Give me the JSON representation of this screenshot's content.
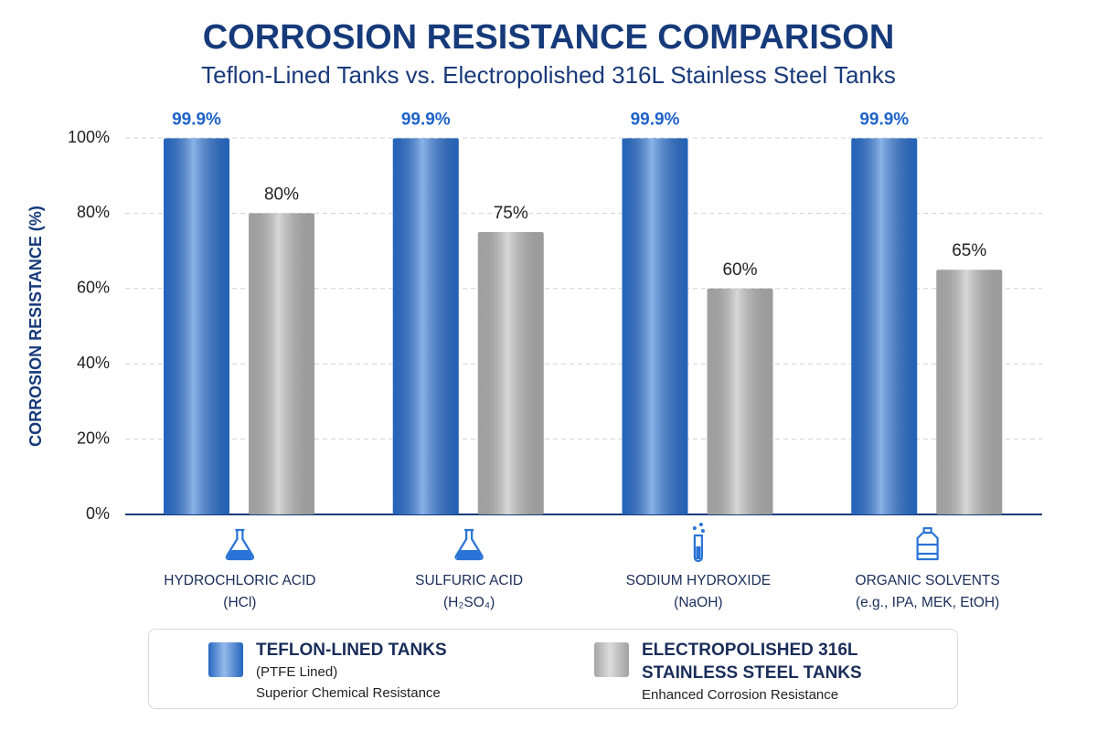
{
  "chart_data": {
    "type": "bar",
    "title": "CORROSION RESISTANCE COMPARISON",
    "subtitle": "Teflon-Lined Tanks vs. Electropolished 316L Stainless Steel Tanks",
    "y_label": "CORROSION RESISTANCE (%)",
    "categories": [
      "HYDROCHLORIC ACID",
      "SULFURIC ACID",
      "SODIUM HYDROXIDE",
      "ORGANIC SOLVENTS"
    ],
    "category_sublabels": [
      "(HCl)",
      "(H₂SO₄)",
      "(NaOH)",
      "(e.g., IPA, MEK, EtOH)"
    ],
    "series": [
      {
        "name": "TEFLON-LINED TANKS",
        "note": "(PTFE Lined)",
        "description": "Superior Chemical Resistance",
        "color": "#2a73d6",
        "values": [
          99.9,
          99.9,
          99.9,
          99.9
        ],
        "value_labels": [
          "99.9%",
          "99.9%",
          "99.9%",
          "99.9%"
        ]
      },
      {
        "name": "ELECTROPOLISHED 316L STAINLESS STEEL TANKS",
        "description": "Enhanced Corrosion Resistance",
        "color": "#b8b8b8",
        "values": [
          80,
          75,
          60,
          65
        ],
        "value_labels": [
          "80%",
          "75%",
          "60%",
          "65%"
        ]
      }
    ],
    "ylim": [
      0,
      100
    ],
    "yticks": [
      {
        "value": 0,
        "label": "0%"
      },
      {
        "value": 20,
        "label": "20%"
      },
      {
        "value": 40,
        "label": "40%"
      },
      {
        "value": 60,
        "label": "60%"
      },
      {
        "value": 80,
        "label": "80%"
      },
      {
        "value": 100,
        "label": "100%"
      }
    ],
    "grid": true
  }
}
